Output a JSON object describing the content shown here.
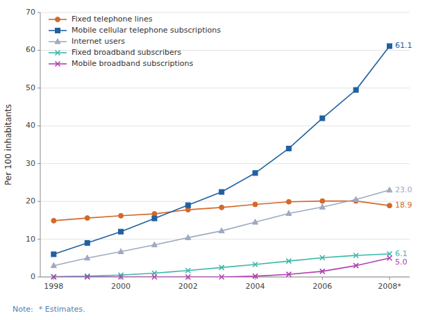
{
  "chart_data": {
    "type": "line",
    "y_label": "Per 100 inhabitants",
    "x": [
      1998,
      1999,
      2000,
      2001,
      2002,
      2003,
      2004,
      2005,
      2006,
      2007,
      2008
    ],
    "series": [
      {
        "name": "Fixed telephone lines",
        "color": "#d4682a",
        "marker": "circle",
        "values": [
          14.9,
          15.6,
          16.2,
          16.7,
          17.8,
          18.4,
          19.2,
          19.9,
          20.1,
          20.1,
          18.9
        ]
      },
      {
        "name": "Mobile cellular telephone subscriptions",
        "color": "#2060a0",
        "marker": "square",
        "values": [
          6.0,
          9.0,
          12.0,
          15.5,
          19.0,
          22.5,
          27.5,
          34.0,
          42.0,
          49.5,
          61.1
        ]
      },
      {
        "name": "Internet users",
        "color": "#9daabf",
        "marker": "triangle",
        "values": [
          3.0,
          5.0,
          6.7,
          8.5,
          10.4,
          12.2,
          14.5,
          16.8,
          18.5,
          20.5,
          23.0
        ]
      },
      {
        "name": "Fixed broadband subscribers",
        "color": "#3ab8a8",
        "marker": "x",
        "values": [
          0.1,
          0.2,
          0.5,
          1.0,
          1.7,
          2.5,
          3.3,
          4.2,
          5.1,
          5.7,
          6.1
        ]
      },
      {
        "name": "Mobile broadband subscriptions",
        "color": "#b040b0",
        "marker": "x",
        "values": [
          0.0,
          0.0,
          0.0,
          0.0,
          0.0,
          0.0,
          0.2,
          0.7,
          1.5,
          3.0,
          5.0
        ]
      }
    ],
    "annotations": [
      {
        "text": "61.1",
        "x": 2008,
        "y": 61.1,
        "color": "#2060a0"
      },
      {
        "text": "23.0",
        "x": 2008,
        "y": 23.0,
        "color": "#9daabf"
      },
      {
        "text": "18.9",
        "x": 2008,
        "y": 18.9,
        "color": "#d4682a"
      },
      {
        "text": "6.1",
        "x": 2008,
        "y": 6.1,
        "color": "#3ab8a8"
      },
      {
        "text": "5.0",
        "x": 2008,
        "y": 5.0,
        "color": "#b040b0"
      }
    ],
    "notes": [
      "Note:",
      "* Estimates."
    ],
    "xlim": [
      1997.6,
      2008.6
    ],
    "xticks": [
      1998,
      2000,
      2002,
      2004,
      2006,
      {
        "value": 2008,
        "label": "2008*"
      }
    ],
    "ylim": [
      0,
      70
    ],
    "yticks": [
      0,
      10,
      20,
      30,
      40,
      50,
      60,
      70
    ],
    "grid": true,
    "legend": "upper-left"
  }
}
